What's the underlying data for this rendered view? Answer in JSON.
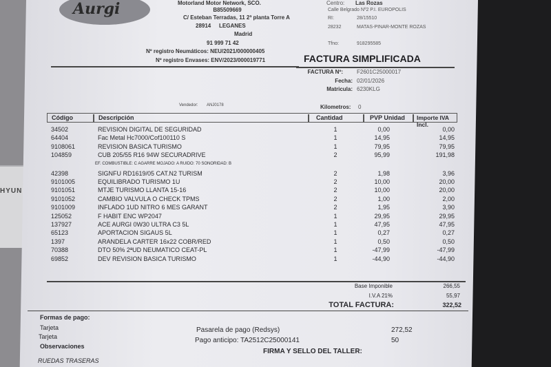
{
  "company": {
    "logo": "Aurgi",
    "name": "Motorland Motor Network, SCO.",
    "cif": "B85509669",
    "address": "C/ Esteban Terradas, 11 2ª planta Torre A",
    "zip": "28914",
    "city": "LEGANES",
    "province": "Madrid",
    "phone": "91 999 71 42",
    "reg_neumaticos": "Nº registro Neumáticos: NEU/2021/000000405",
    "reg_envases": "Nº registro Envases: ENV/2023/000019771"
  },
  "centro": {
    "label": "Centro:",
    "value": "Las Rozas",
    "address": "Calle Belgrado Nº2 P.I. EUROPOLIS",
    "ri_label": "RI:",
    "ri": "28/15510",
    "zip": "28232",
    "city": "MATAS-PINAR-MONTE ROZAS",
    "tlf_label": "Tfno:",
    "tlf": "918295585"
  },
  "title": "FACTURA SIMPLIFICADA",
  "invoice": {
    "num_label": "FACTURA Nº:",
    "num": "F2601C25000017",
    "date_label": "Fecha:",
    "date": "02/01/2026",
    "plate_label": "Matricula:",
    "plate": "6230KLG",
    "km_label": "Kilometros:",
    "km": "0",
    "seller_label": "Vendedor:",
    "seller": "ANJ0178"
  },
  "table": {
    "headers": [
      "Código",
      "Descripción",
      "Cantidad",
      "PVP Unidad",
      "Importe IVA Incl."
    ],
    "rows": [
      [
        "34502",
        "REVISION DIGITAL DE SEGURIDAD",
        "1",
        "0,00",
        "0,00"
      ],
      [
        "64404",
        "Fac Metal Hc7000/Cof100110 S",
        "1",
        "14,95",
        "14,95"
      ],
      [
        "9108061",
        "REVISION BASICA TURISMO",
        "1",
        "79,95",
        "79,95"
      ],
      [
        "104859",
        "CUB 205/55 R16 94W SECURADRIVE",
        "2",
        "95,99",
        "191,98"
      ],
      [
        "",
        "EF. COMBUSTIBLE: C AGARRE MOJADO: A RUIDO: 70 SONORIDAD: B",
        "",
        "",
        ""
      ],
      [
        "42398",
        "SIGNFU RD1619/05 CAT.N2 TURISM",
        "2",
        "1,98",
        "3,96"
      ],
      [
        "9101005",
        "EQUILIBRADO TURISMO 1U",
        "2",
        "10,00",
        "20,00"
      ],
      [
        "9101051",
        "MTJE TURISMO LLANTA 15-16",
        "2",
        "10,00",
        "20,00"
      ],
      [
        "9101052",
        "CAMBIO VALVULA O CHECK TPMS",
        "2",
        "1,00",
        "2,00"
      ],
      [
        "9101009",
        "INFLADO 1UD NITRO 6 MES GARANT",
        "2",
        "1,95",
        "3,90"
      ],
      [
        "125052",
        "F HABIT ENC WP2047",
        "1",
        "29,95",
        "29,95"
      ],
      [
        "137927",
        "ACE AURGI 0W30 ULTRA C3 5L",
        "1",
        "47,95",
        "47,95"
      ],
      [
        "65123",
        "APORTACION SIGAUS 5L",
        "1",
        "0,27",
        "0,27"
      ],
      [
        "1397",
        "ARANDELA CARTER 16x22 COBR/RED",
        "1",
        "0,50",
        "0,50"
      ],
      [
        "70388",
        "DTO 50% 2ªUD NEUMATICO CEAT-PL",
        "1",
        "-47,99",
        "-47,99"
      ],
      [
        "69852",
        "DEV REVISION BASICA TURISMO",
        "1",
        "-44,90",
        "-44,90"
      ]
    ]
  },
  "totals": {
    "base_label": "Base Imponible",
    "base": "266,55",
    "iva_label": "I.V.A 21%",
    "iva": "55,97",
    "total_label": "TOTAL FACTURA:",
    "total": "322,52"
  },
  "payment": {
    "label": "Formas de pago:",
    "items": [
      {
        "type": "Tarjeta",
        "desc": "Pasarela de pago (Redsys)",
        "amount": "272,52"
      },
      {
        "type": "Tarjeta",
        "desc": "Pago anticipo: TA2512C25000141",
        "amount": "50"
      }
    ]
  },
  "obs_label": "Observaciones",
  "obs": "RUEDAS TRASERAS",
  "signature": "FIRMA Y SELLO DEL TALLER:",
  "card_text": "HYUN"
}
